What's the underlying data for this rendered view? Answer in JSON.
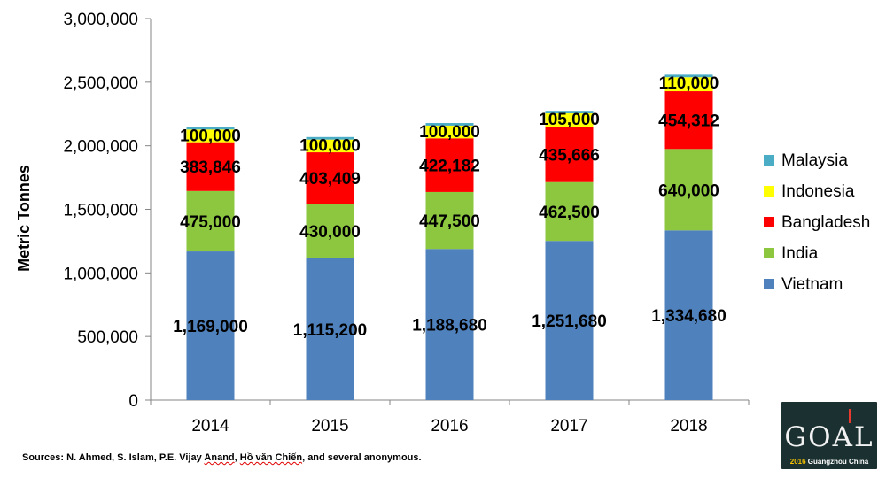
{
  "chart_data": {
    "type": "bar",
    "stacked": true,
    "title": "",
    "xlabel": "",
    "ylabel": "Metric Tonnes",
    "ylim": [
      0,
      3000000
    ],
    "yticks": [
      0,
      500000,
      1000000,
      1500000,
      2000000,
      2500000,
      3000000
    ],
    "ytick_labels": [
      "0",
      "500,000",
      "1,000,000",
      "1,500,000",
      "2,000,000",
      "2,500,000",
      "3,000,000"
    ],
    "categories": [
      "2014",
      "2015",
      "2016",
      "2017",
      "2018"
    ],
    "series": [
      {
        "name": "Vietnam",
        "color": "#4f81bd",
        "values": [
          1169000,
          1115200,
          1188680,
          1251680,
          1334680
        ],
        "labels": [
          "1,169,000",
          "1,115,200",
          "1,188,680",
          "1,251,680",
          "1,334,680"
        ]
      },
      {
        "name": "India",
        "color": "#8dc63f",
        "values": [
          475000,
          430000,
          447500,
          462500,
          640000
        ],
        "labels": [
          "475,000",
          "430,000",
          "447,500",
          "462,500",
          "640,000"
        ]
      },
      {
        "name": "Bangladesh",
        "color": "#ff0000",
        "values": [
          383846,
          403409,
          422182,
          435666,
          454312
        ],
        "labels": [
          "383,846",
          "403,409",
          "422,182",
          "435,666",
          "454,312"
        ]
      },
      {
        "name": "Indonesia",
        "color": "#ffff00",
        "values": [
          100000,
          100000,
          100000,
          105000,
          110000
        ],
        "labels": [
          "100,000",
          "100,000",
          "100,000",
          "105,000",
          "110,000"
        ]
      },
      {
        "name": "Malaysia",
        "color": "#4bacc6",
        "values": [
          20000,
          20000,
          20000,
          20000,
          20000
        ],
        "labels": []
      }
    ],
    "legend": {
      "position": "right",
      "order": [
        "Malaysia",
        "Indonesia",
        "Bangladesh",
        "India",
        "Vietnam"
      ]
    },
    "grid": false
  },
  "source": {
    "prefix": "Sources: N. Ahmed, S. Islam, P.E. Vijay ",
    "underlined": "Anand",
    "middle": ", ",
    "underlined2": "Hồ văn Chiến",
    "suffix": ", and several anonymous."
  },
  "logo": {
    "text": "GOAL",
    "sub_year": "2016",
    "sub_city": "Guangzhou",
    "sub_country": "China"
  }
}
